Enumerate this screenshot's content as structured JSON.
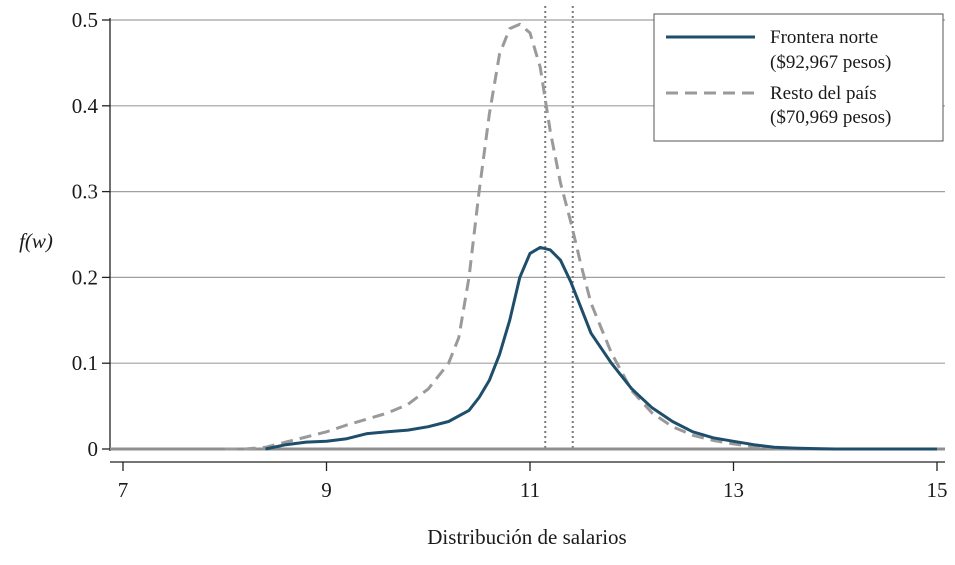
{
  "chart_data": {
    "type": "line",
    "title": "",
    "xlabel": "Distribución de salarios",
    "ylabel": "f(w)",
    "xlim": [
      7,
      15
    ],
    "ylim": [
      0,
      0.5
    ],
    "x_ticks": [
      7,
      9,
      11,
      13,
      15
    ],
    "y_ticks": [
      0,
      0.1,
      0.2,
      0.3,
      0.4,
      0.5
    ],
    "x_tick_labels": [
      "7",
      "9",
      "11",
      "13",
      "15"
    ],
    "y_tick_labels": [
      "0",
      "0.1",
      "0.2",
      "0.3",
      "0.4",
      "0.5"
    ],
    "grid": "horizontal",
    "legend_position": "top-right",
    "colors": {
      "frontera": "#1f4e6b",
      "resto": "#9a9a9a",
      "grid": "#a0a0a0",
      "zero_line": "#8f8f8f",
      "vline": "#7a7a7a"
    },
    "vertical_lines": [
      11.15,
      11.42
    ],
    "series": [
      {
        "name": "Frontera norte",
        "name_line2": "($92,967 pesos)",
        "style": "solid",
        "x": [
          8.4,
          8.6,
          8.8,
          9.0,
          9.2,
          9.4,
          9.6,
          9.8,
          10.0,
          10.2,
          10.4,
          10.5,
          10.6,
          10.7,
          10.8,
          10.9,
          11.0,
          11.1,
          11.2,
          11.3,
          11.4,
          11.5,
          11.6,
          11.8,
          12.0,
          12.2,
          12.4,
          12.6,
          12.8,
          13.0,
          13.2,
          13.4,
          13.6,
          13.8,
          14.0,
          14.5,
          15.0
        ],
        "y": [
          0.0,
          0.005,
          0.008,
          0.009,
          0.012,
          0.018,
          0.02,
          0.022,
          0.026,
          0.032,
          0.045,
          0.06,
          0.08,
          0.11,
          0.15,
          0.2,
          0.228,
          0.235,
          0.232,
          0.22,
          0.195,
          0.165,
          0.135,
          0.1,
          0.07,
          0.048,
          0.032,
          0.02,
          0.013,
          0.009,
          0.005,
          0.002,
          0.001,
          0.0005,
          0.0,
          0.0,
          0.0
        ]
      },
      {
        "name": "Resto del país",
        "name_line2": "($70,969 pesos)",
        "style": "dashed",
        "x": [
          8.0,
          8.2,
          8.4,
          8.6,
          8.8,
          9.0,
          9.2,
          9.4,
          9.6,
          9.8,
          10.0,
          10.2,
          10.3,
          10.4,
          10.5,
          10.6,
          10.7,
          10.8,
          10.9,
          11.0,
          11.1,
          11.2,
          11.3,
          11.4,
          11.5,
          11.6,
          11.8,
          12.0,
          12.2,
          12.4,
          12.6,
          12.8,
          13.0,
          13.2,
          13.4,
          13.6,
          13.8,
          14.0,
          14.5,
          15.0
        ],
        "y": [
          0.0,
          0.0,
          0.002,
          0.008,
          0.014,
          0.02,
          0.028,
          0.035,
          0.042,
          0.052,
          0.07,
          0.1,
          0.13,
          0.2,
          0.3,
          0.39,
          0.46,
          0.49,
          0.495,
          0.485,
          0.445,
          0.37,
          0.31,
          0.265,
          0.215,
          0.17,
          0.112,
          0.068,
          0.042,
          0.026,
          0.016,
          0.01,
          0.006,
          0.003,
          0.001,
          0.0005,
          0.0,
          0.0,
          0.0,
          0.0
        ]
      }
    ]
  }
}
